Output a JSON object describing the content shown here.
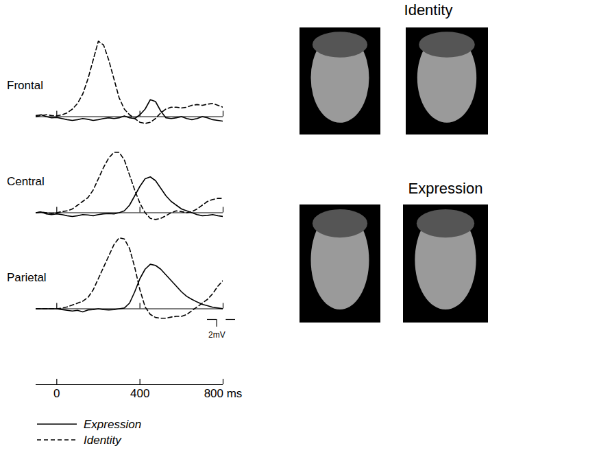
{
  "chart_data": [
    {
      "type": "line",
      "title": "Frontal",
      "x": [
        -100,
        -75,
        -50,
        -25,
        0,
        25,
        50,
        75,
        100,
        125,
        150,
        175,
        200,
        225,
        250,
        275,
        300,
        325,
        350,
        375,
        400,
        425,
        450,
        475,
        500,
        525,
        550,
        575,
        600,
        625,
        650,
        675,
        700,
        725,
        750,
        775,
        800
      ],
      "xlim": [
        -100,
        800
      ],
      "xticks": [
        0,
        400,
        800
      ],
      "ylim": [
        -3,
        21
      ],
      "tick_labels": false,
      "legend": "bottom",
      "series": [
        {
          "name": "Expression",
          "color": "#000000",
          "line_style": "solid",
          "values": [
            0.3,
            0.5,
            0,
            -0.3,
            -0.2,
            -0.5,
            -0.8,
            -1,
            -0.8,
            -0.5,
            -0.7,
            -1,
            -0.8,
            -0.5,
            -0.3,
            -0.5,
            -0.3,
            0.2,
            -0.3,
            -0.5,
            0.5,
            2,
            4.5,
            4,
            1.5,
            -0.3,
            -0.5,
            -0.3,
            0,
            -0.5,
            -0.8,
            -0.5,
            0,
            -0.3,
            -0.8,
            -1,
            -1.2
          ]
        },
        {
          "name": "Identity",
          "color": "#000000",
          "line_style": "dashed",
          "values": [
            0,
            0.3,
            0.5,
            0.3,
            0.2,
            0.5,
            1,
            2,
            3.5,
            6,
            10,
            15,
            20,
            19,
            15,
            10,
            5,
            2,
            0.5,
            -0.5,
            -1.5,
            -1.8,
            -1.5,
            -0.5,
            1,
            2,
            2.5,
            2.5,
            2.3,
            2.5,
            3,
            3.2,
            3,
            3.3,
            3.5,
            3,
            2.5
          ]
        }
      ]
    },
    {
      "type": "line",
      "title": "Central",
      "x": [
        -100,
        -75,
        -50,
        -25,
        0,
        25,
        50,
        75,
        100,
        125,
        150,
        175,
        200,
        225,
        250,
        275,
        300,
        325,
        350,
        375,
        400,
        425,
        450,
        475,
        500,
        525,
        550,
        575,
        600,
        625,
        650,
        675,
        700,
        725,
        750,
        775,
        800
      ],
      "xlim": [
        -100,
        800
      ],
      "xticks": [
        0,
        400,
        800
      ],
      "ylim": [
        -3,
        21
      ],
      "tick_labels": false,
      "series": [
        {
          "name": "Expression",
          "color": "#000000",
          "line_style": "solid",
          "values": [
            0,
            0.2,
            -0.3,
            -0.5,
            -0.3,
            -0.5,
            -0.8,
            -1,
            -0.8,
            -0.5,
            -0.6,
            -0.8,
            -0.5,
            -0.3,
            -0.2,
            -0.3,
            0,
            0.5,
            2,
            4.5,
            7,
            9,
            9.5,
            8.5,
            6.5,
            4.5,
            3,
            2,
            1,
            0.5,
            0,
            -0.5,
            -0.8,
            -0.7,
            -0.5,
            -0.8,
            -1
          ]
        },
        {
          "name": "Identity",
          "color": "#000000",
          "line_style": "dashed",
          "values": [
            0,
            0.2,
            0,
            -0.2,
            0,
            0.3,
            0.5,
            1,
            2,
            3,
            4,
            6,
            9,
            12,
            14.5,
            16,
            16,
            14,
            10,
            6,
            2.5,
            0,
            -1.5,
            -1.8,
            -1.5,
            -0.8,
            0,
            0.5,
            0.3,
            0,
            0.3,
            1,
            2,
            3,
            3.5,
            3.8,
            3.8
          ]
        }
      ]
    },
    {
      "type": "line",
      "title": "Parietal",
      "x": [
        -100,
        -75,
        -50,
        -25,
        0,
        25,
        50,
        75,
        100,
        125,
        150,
        175,
        200,
        225,
        250,
        275,
        300,
        325,
        350,
        375,
        400,
        425,
        450,
        475,
        500,
        525,
        550,
        575,
        600,
        625,
        650,
        675,
        700,
        725,
        750,
        775,
        800
      ],
      "xlim": [
        -100,
        800
      ],
      "xticks": [
        0,
        400,
        800
      ],
      "ylim": [
        -3,
        21
      ],
      "tick_labels": false,
      "series": [
        {
          "name": "Expression",
          "color": "#000000",
          "line_style": "solid",
          "values": [
            0,
            0,
            0,
            0,
            0,
            -0.2,
            -0.4,
            -0.6,
            -0.4,
            -0.8,
            -0.3,
            -0.2,
            0,
            -0.2,
            -0.3,
            -0.2,
            0,
            0.2,
            1.5,
            4.5,
            8,
            10.5,
            11.8,
            11.5,
            10.5,
            9,
            7.5,
            6,
            4.5,
            3.3,
            2.5,
            1.8,
            1.2,
            0.8,
            0.4,
            0.2,
            0
          ]
        },
        {
          "name": "Identity",
          "color": "#000000",
          "line_style": "dashed",
          "values": [
            0,
            0,
            0,
            0,
            0,
            0.2,
            0.5,
            1,
            1.5,
            2,
            3,
            5,
            8,
            11,
            14,
            17,
            18.8,
            18.5,
            16,
            11,
            5,
            0.5,
            -1.5,
            -2.3,
            -2.5,
            -2.5,
            -2.2,
            -2,
            -2,
            -1.5,
            -0.5,
            0.5,
            1.5,
            2.5,
            4,
            6,
            7.5
          ]
        }
      ]
    }
  ],
  "time_axis": {
    "xlim": [
      -100,
      800
    ],
    "xticks": [
      0,
      400,
      {
        "value": 800,
        "label": "800 ms"
      }
    ]
  },
  "scale_bar": {
    "value": 2,
    "label": "2mV"
  },
  "images": {
    "groups": [
      {
        "title": "Identity"
      },
      {
        "title": "Expression"
      }
    ]
  }
}
